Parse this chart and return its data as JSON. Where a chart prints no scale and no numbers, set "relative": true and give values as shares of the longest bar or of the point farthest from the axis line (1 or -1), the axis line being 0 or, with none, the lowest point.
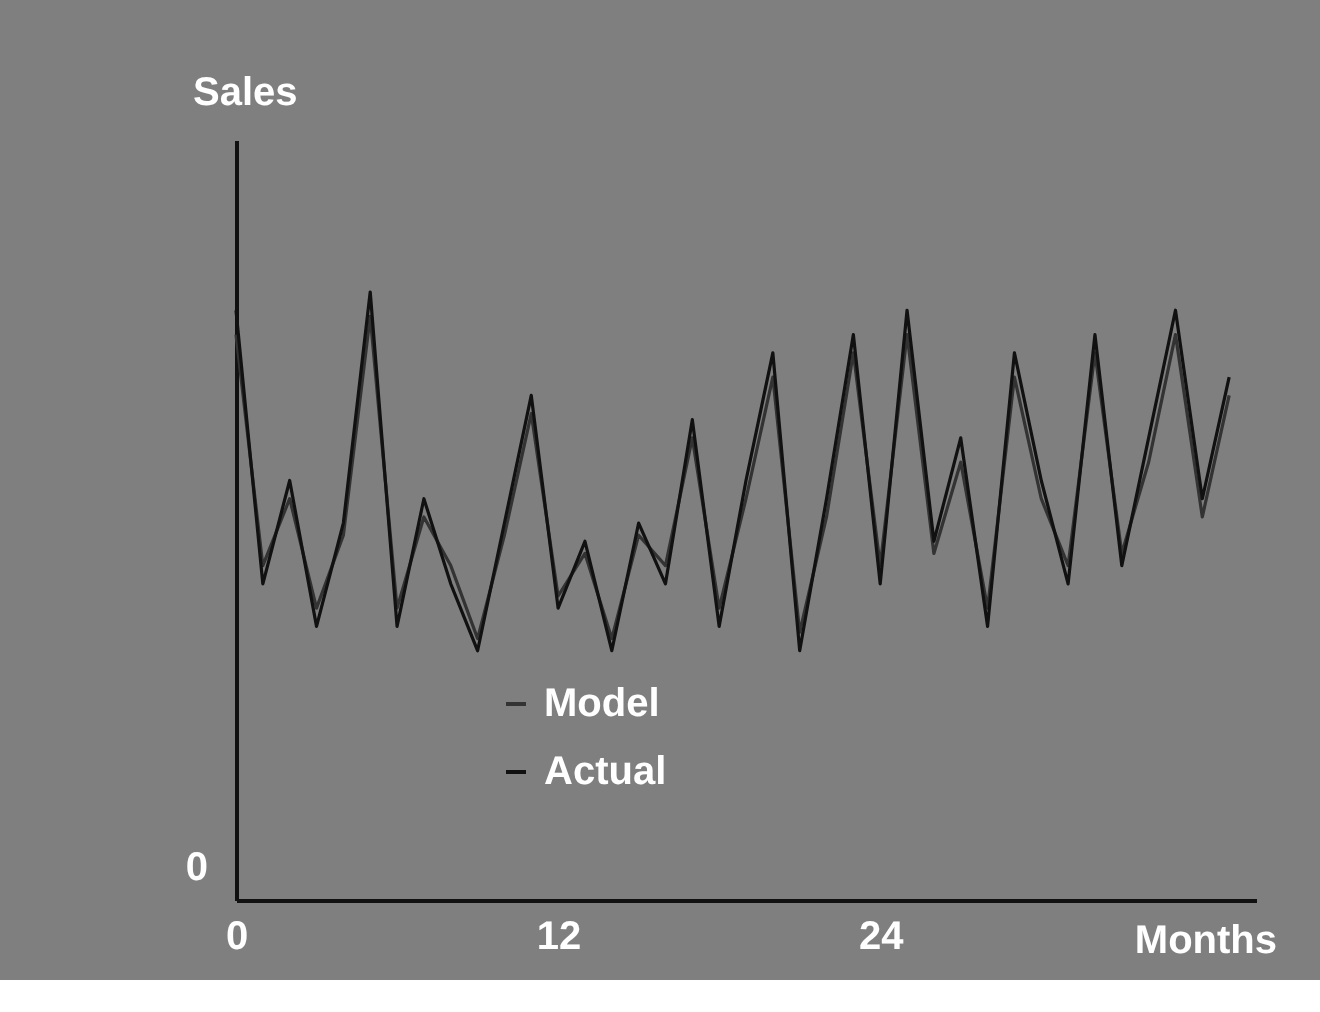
{
  "chart_data": {
    "type": "line",
    "relative": true,
    "xlabel": "Months",
    "ylabel": "Sales",
    "x": [
      0,
      1,
      2,
      3,
      4,
      5,
      6,
      7,
      8,
      9,
      10,
      11,
      12,
      13,
      14,
      15,
      16,
      17,
      18,
      19,
      20,
      21,
      22,
      23,
      24,
      25,
      26,
      27,
      28,
      29,
      30,
      31,
      32,
      33,
      34,
      35,
      36,
      37
    ],
    "xlim": [
      0,
      38
    ],
    "xticks": [
      0,
      12,
      24
    ],
    "series": [
      {
        "name": "Model",
        "color": "#333333",
        "values": [
          0.93,
          0.55,
          0.66,
          0.48,
          0.6,
          0.96,
          0.48,
          0.63,
          0.55,
          0.43,
          0.6,
          0.8,
          0.5,
          0.57,
          0.43,
          0.6,
          0.55,
          0.76,
          0.48,
          0.66,
          0.86,
          0.44,
          0.63,
          0.9,
          0.55,
          0.93,
          0.57,
          0.72,
          0.48,
          0.86,
          0.66,
          0.55,
          0.9,
          0.57,
          0.72,
          0.93,
          0.63,
          0.83
        ]
      },
      {
        "name": "Actual",
        "color": "#111111",
        "values": [
          0.97,
          0.52,
          0.69,
          0.45,
          0.62,
          1.0,
          0.45,
          0.66,
          0.52,
          0.41,
          0.62,
          0.83,
          0.48,
          0.59,
          0.41,
          0.62,
          0.52,
          0.79,
          0.45,
          0.69,
          0.9,
          0.41,
          0.66,
          0.93,
          0.52,
          0.97,
          0.59,
          0.76,
          0.45,
          0.9,
          0.69,
          0.52,
          0.93,
          0.55,
          0.76,
          0.97,
          0.66,
          0.86
        ]
      }
    ],
    "annotations": [
      "0"
    ],
    "legend": "bottom",
    "grid": false,
    "marker": "none",
    "line_style": "solid"
  }
}
